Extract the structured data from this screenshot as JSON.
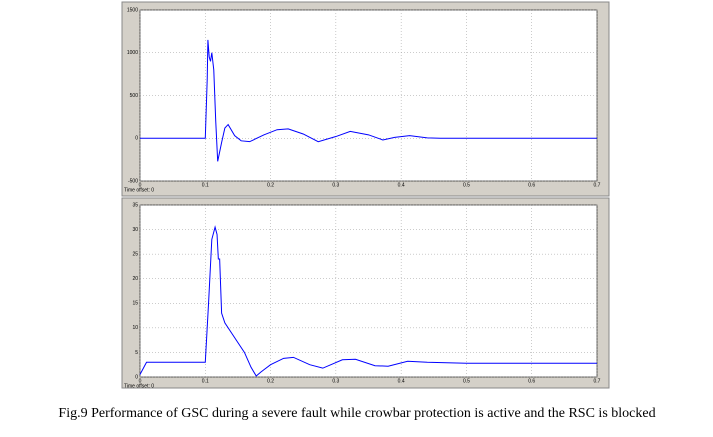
{
  "chart_data": [
    {
      "type": "line",
      "xlabel": "Time offset: 0",
      "color": "#0000ff",
      "x": [
        0,
        0.099,
        0.1,
        0.103,
        0.104,
        0.106,
        0.108,
        0.11,
        0.113,
        0.116,
        0.119,
        0.125,
        0.13,
        0.135,
        0.145,
        0.155,
        0.168,
        0.19,
        0.21,
        0.227,
        0.25,
        0.273,
        0.3,
        0.322,
        0.35,
        0.372,
        0.39,
        0.413,
        0.44,
        0.46,
        0.7
      ],
      "values": [
        0,
        0,
        0,
        700,
        1150,
        950,
        900,
        1000,
        800,
        200,
        -270,
        -50,
        120,
        160,
        30,
        -30,
        -40,
        40,
        100,
        110,
        50,
        -40,
        20,
        80,
        40,
        -20,
        10,
        30,
        5,
        0,
        0
      ],
      "xlim": [
        0,
        0.7
      ],
      "xticks": [
        0,
        0.1,
        0.2,
        0.3,
        0.4,
        0.5,
        0.6,
        0.7
      ],
      "ylim": [
        -500,
        1500
      ],
      "yticks": [
        -500,
        0,
        500,
        1000,
        1500
      ],
      "grid": true
    },
    {
      "type": "line",
      "xlabel": "Time offset: 0",
      "color": "#0000ff",
      "x": [
        0,
        0.01,
        0.099,
        0.1,
        0.105,
        0.11,
        0.115,
        0.118,
        0.12,
        0.122,
        0.125,
        0.13,
        0.14,
        0.15,
        0.16,
        0.17,
        0.178,
        0.185,
        0.19,
        0.2,
        0.22,
        0.235,
        0.26,
        0.28,
        0.31,
        0.33,
        0.36,
        0.38,
        0.41,
        0.44,
        0.5,
        0.7
      ],
      "values": [
        0.5,
        3,
        3,
        3,
        15,
        28,
        30.5,
        29,
        24,
        24,
        13,
        11,
        9,
        7,
        5,
        2,
        0.2,
        1,
        1.5,
        2.5,
        3.8,
        4,
        2.5,
        1.8,
        3.5,
        3.6,
        2.3,
        2.2,
        3.2,
        3,
        2.8,
        2.8
      ],
      "xlim": [
        0,
        0.7
      ],
      "xticks": [
        0,
        0.1,
        0.2,
        0.3,
        0.4,
        0.5,
        0.6,
        0.7
      ],
      "ylim": [
        0,
        35
      ],
      "yticks": [
        0,
        5,
        10,
        15,
        20,
        25,
        30,
        35
      ],
      "grid": true
    }
  ],
  "caption": "Fig.9 Performance of GSC during a severe fault while crowbar protection is active and the RSC is blocked"
}
